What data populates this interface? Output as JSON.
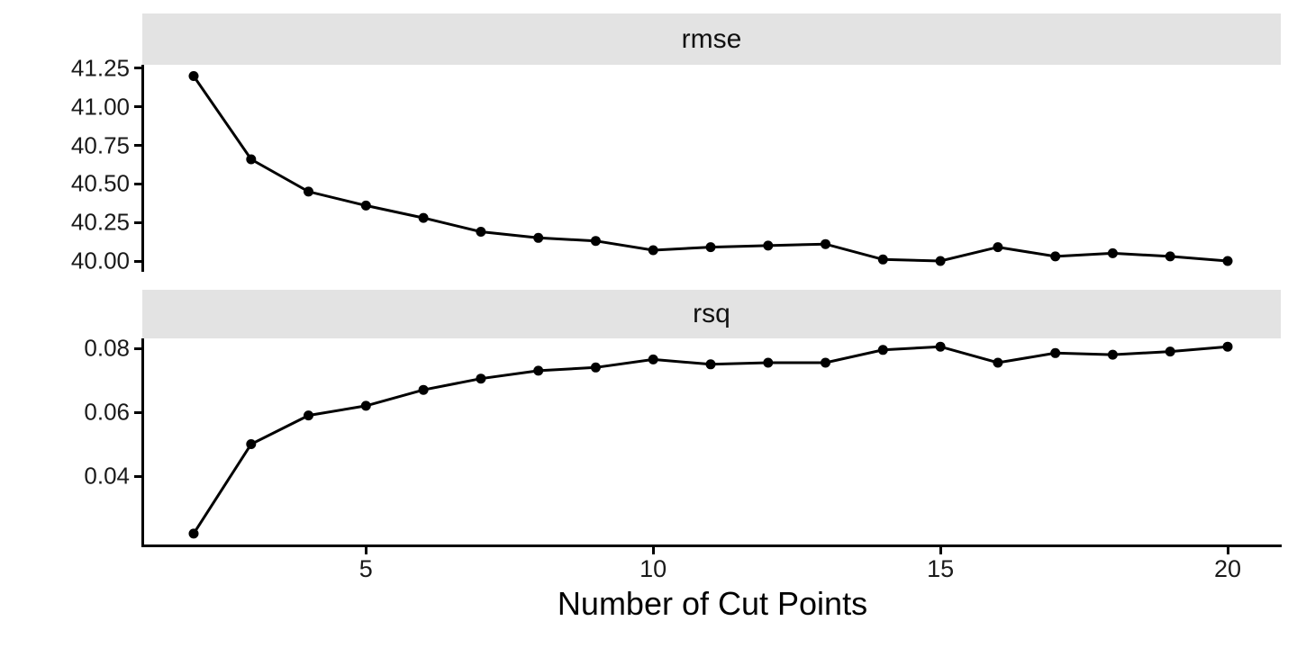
{
  "figure": {
    "background_color": "#ffffff",
    "strip_background_color": "#e3e3e3",
    "line_color": "#000000",
    "point_color": "#000000",
    "axis_color": "#000000",
    "text_color": "#1a1a1a"
  },
  "x_axis": {
    "label": "Number of Cut Points",
    "ticks": [
      5,
      10,
      15,
      20
    ],
    "tick_labels": [
      "5",
      "10",
      "15",
      "20"
    ],
    "xlim": [
      1.138,
      20.925
    ]
  },
  "chart_data": [
    {
      "type": "line",
      "title": "rmse",
      "x": [
        2,
        3,
        4,
        5,
        6,
        7,
        8,
        9,
        10,
        11,
        12,
        13,
        14,
        15,
        16,
        17,
        18,
        19,
        20
      ],
      "values": [
        41.2,
        40.66,
        40.45,
        40.36,
        40.28,
        40.19,
        40.15,
        40.13,
        40.07,
        40.09,
        40.1,
        40.11,
        40.01,
        40.0,
        40.09,
        40.03,
        40.05,
        40.03,
        40.0
      ],
      "yticks": [
        41.25,
        41.0,
        40.75,
        40.5,
        40.25,
        40.0
      ],
      "ytick_labels": [
        "41.25",
        "41.00",
        "40.75",
        "40.50",
        "40.25",
        "40.00"
      ],
      "ylim": [
        39.93,
        41.273
      ],
      "grid": false,
      "legend": false
    },
    {
      "type": "line",
      "title": "rsq",
      "x": [
        2,
        3,
        4,
        5,
        6,
        7,
        8,
        9,
        10,
        11,
        12,
        13,
        14,
        15,
        16,
        17,
        18,
        19,
        20
      ],
      "values": [
        0.022,
        0.05,
        0.059,
        0.062,
        0.067,
        0.0705,
        0.073,
        0.074,
        0.0765,
        0.075,
        0.0755,
        0.0755,
        0.0795,
        0.0805,
        0.0755,
        0.0785,
        0.078,
        0.079,
        0.0805
      ],
      "yticks": [
        0.08,
        0.06,
        0.04
      ],
      "ytick_labels": [
        "0.08",
        "0.06",
        "0.04"
      ],
      "ylim": [
        0.0186,
        0.0831
      ],
      "grid": false,
      "legend": false
    }
  ]
}
